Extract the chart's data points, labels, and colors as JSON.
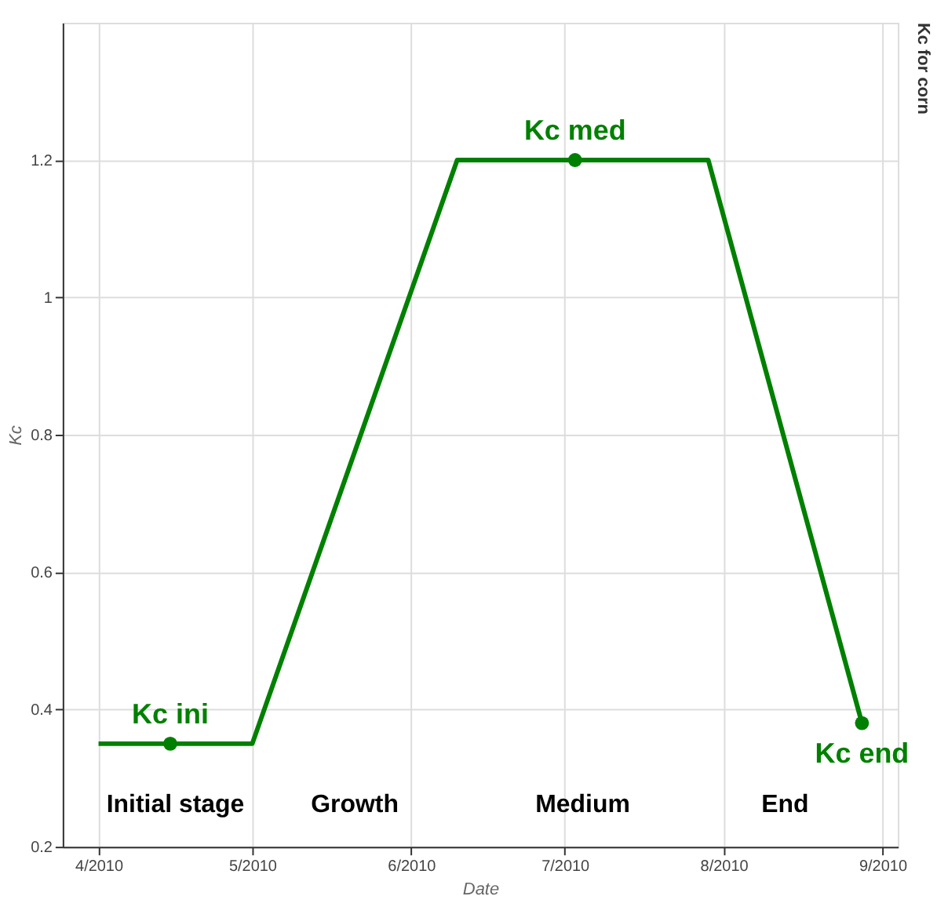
{
  "chart_data": {
    "type": "line",
    "title": "Kc for corn",
    "xlabel": "Date",
    "ylabel": "Kc",
    "x": [
      "2010-04-01",
      "2010-05-01",
      "2010-06-10",
      "2010-07-29",
      "2010-08-28"
    ],
    "series": [
      {
        "color": "#008000",
        "values": [
          0.35,
          0.35,
          1.2,
          1.2,
          0.38
        ],
        "marker": "none"
      },
      {
        "type": "scatter",
        "color": "#008000",
        "x": [
          "2010-04-15",
          "2010-07-03",
          "2010-08-28"
        ],
        "values": [
          0.35,
          1.2,
          0.38
        ],
        "marker": "circle"
      }
    ],
    "annotations": [
      {
        "text": "Kc ini",
        "x": "2010-04-15",
        "y": 0.35
      },
      {
        "text": "Kc med",
        "x": "2010-07-03",
        "y": 1.2
      },
      {
        "text": "Kc end",
        "x": "2010-08-28",
        "y": 0.38
      },
      "Initial stage",
      "Growth",
      "Medium",
      "End"
    ],
    "xlim": [
      "2010-03-25",
      "2010-09-04"
    ],
    "xticks": [
      {
        "value": "2010-04-01",
        "label": "4/2010"
      },
      {
        "value": "2010-05-01",
        "label": "5/2010"
      },
      {
        "value": "2010-06-01",
        "label": "6/2010"
      },
      {
        "value": "2010-07-01",
        "label": "7/2010"
      },
      {
        "value": "2010-08-01",
        "label": "8/2010"
      },
      {
        "value": "2010-09-01",
        "label": "9/2010"
      }
    ],
    "ylim": [
      0.2,
      1.4
    ],
    "yticks": [
      0.2,
      0.4,
      0.6,
      0.8,
      1,
      1.2
    ],
    "grid": true
  }
}
